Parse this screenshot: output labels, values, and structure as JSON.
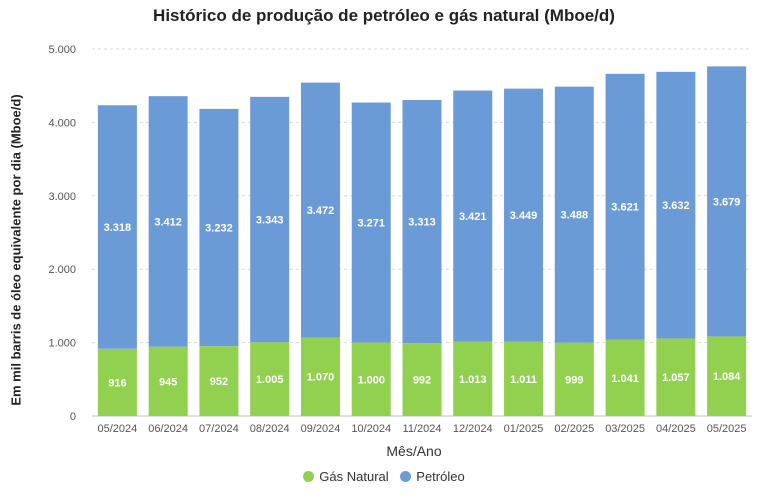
{
  "chart_data": {
    "type": "bar",
    "stacked": true,
    "title": "Histórico de produção de petróleo e gás natural (Mboe/d)",
    "xlabel": "Mês/Ano",
    "ylabel": "Em mil barris de óleo equivalente por dia (Mboe/d)",
    "ylim": [
      0,
      5000
    ],
    "yticks": [
      "0",
      "1.000",
      "2.000",
      "3.000",
      "4.000",
      "5.000"
    ],
    "ytick_values": [
      0,
      1000,
      2000,
      3000,
      4000,
      5000
    ],
    "grid": true,
    "legend_position": "bottom",
    "categories": [
      "05/2024",
      "06/2024",
      "07/2024",
      "08/2024",
      "09/2024",
      "10/2024",
      "11/2024",
      "12/2024",
      "01/2025",
      "02/2025",
      "03/2025",
      "04/2025",
      "05/2025"
    ],
    "series": [
      {
        "name": "Gás Natural",
        "color": "#92d050",
        "values": [
          916,
          945,
          952,
          1005,
          1070,
          1000,
          992,
          1013,
          1011,
          999,
          1041,
          1057,
          1084
        ],
        "labels": [
          "916",
          "945",
          "952",
          "1.005",
          "1.070",
          "1.000",
          "992",
          "1.013",
          "1.011",
          "999",
          "1.041",
          "1.057",
          "1.084"
        ]
      },
      {
        "name": "Petróleo",
        "color": "#6a9bd6",
        "values": [
          3318,
          3412,
          3232,
          3343,
          3472,
          3271,
          3313,
          3421,
          3449,
          3488,
          3621,
          3632,
          3679
        ],
        "labels": [
          "3.318",
          "3.412",
          "3.232",
          "3.343",
          "3.472",
          "3.271",
          "3.313",
          "3.421",
          "3.449",
          "3.488",
          "3.621",
          "3.632",
          "3.679"
        ]
      }
    ]
  }
}
